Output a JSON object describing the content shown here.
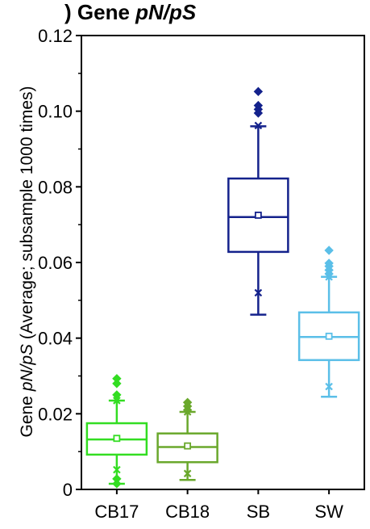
{
  "chart_data": {
    "type": "box",
    "title": {
      "prefix": ") Gene ",
      "italic": "pN/pS"
    },
    "ylabel": {
      "pre": "Gene ",
      "italic": "pN/pS",
      "post": " (Average; subsample 1000 times)"
    },
    "xlabel": "",
    "ylim": [
      0,
      0.12
    ],
    "yticks": [
      {
        "value": 0,
        "label": "0"
      },
      {
        "value": 0.02,
        "label": "0.02"
      },
      {
        "value": 0.04,
        "label": "0.04"
      },
      {
        "value": 0.06,
        "label": "0.06"
      },
      {
        "value": 0.08,
        "label": "0.08"
      },
      {
        "value": 0.1,
        "label": "0.10"
      },
      {
        "value": 0.12,
        "label": "0.12"
      }
    ],
    "minor_yticks": [
      0.01,
      0.03,
      0.05,
      0.07,
      0.09,
      0.11
    ],
    "categories": [
      "CB17",
      "CB18",
      "SB",
      "SW"
    ],
    "boxes": [
      {
        "category": "CB17",
        "color": "#33dd22",
        "whisker_low": 0.0015,
        "q1": 0.0092,
        "median": 0.0132,
        "mean": 0.0135,
        "q3": 0.0175,
        "whisker_high": 0.0235,
        "x_markers": [
          0.0052,
          0.0235
        ],
        "outliers": [
          0.0015,
          0.0028,
          0.025,
          0.028,
          0.0293
        ]
      },
      {
        "category": "CB18",
        "color": "#6aa82c",
        "whisker_low": 0.0025,
        "q1": 0.0072,
        "median": 0.0112,
        "mean": 0.0115,
        "q3": 0.0148,
        "whisker_high": 0.0205,
        "x_markers": [
          0.0042,
          0.0205
        ],
        "outliers": [
          0.021,
          0.022,
          0.023
        ]
      },
      {
        "category": "SB",
        "color": "#14228c",
        "whisker_low": 0.0462,
        "q1": 0.0628,
        "median": 0.072,
        "mean": 0.0725,
        "q3": 0.0822,
        "whisker_high": 0.096,
        "x_markers": [
          0.052,
          0.0962
        ],
        "outliers": [
          0.0995,
          0.1005,
          0.1015,
          0.1052
        ]
      },
      {
        "category": "SW",
        "color": "#5bbfe8",
        "whisker_low": 0.0245,
        "q1": 0.0342,
        "median": 0.0403,
        "mean": 0.0405,
        "q3": 0.0468,
        "whisker_high": 0.0562,
        "x_markers": [
          0.0272,
          0.0562
        ],
        "outliers": [
          0.057,
          0.058,
          0.059,
          0.0598,
          0.0632
        ]
      }
    ]
  }
}
